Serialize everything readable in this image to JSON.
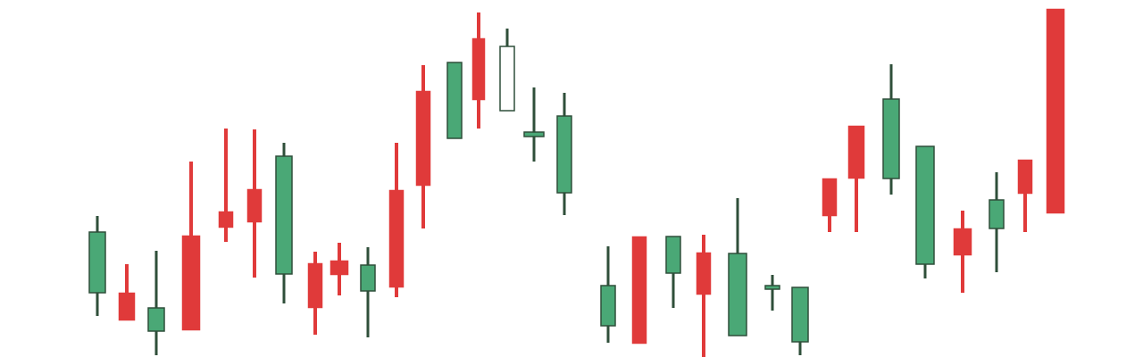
{
  "chart_data": {
    "type": "candlestick",
    "title": "",
    "xlabel": "",
    "ylabel": "",
    "ylim": [
      0,
      400
    ],
    "grid": false,
    "legend": "none",
    "colors": {
      "up": "#4aa876",
      "down": "#e03a3a",
      "hollow_fill": "#ffffff",
      "outline": "#2f4f3a"
    },
    "x": [
      1,
      2,
      3,
      4,
      5,
      6,
      7,
      8,
      9,
      10,
      11,
      12,
      13,
      14,
      15,
      16,
      17,
      18,
      19,
      20,
      21,
      22,
      23,
      24,
      25,
      26,
      27,
      28,
      29,
      30,
      31,
      32,
      33,
      34,
      35,
      36
    ],
    "candles": [
      {
        "x": 1,
        "open": 72,
        "close": 140,
        "high": 158,
        "low": 46,
        "dir": "up"
      },
      {
        "x": 2,
        "open": 72,
        "close": 41,
        "high": 104,
        "low": 41,
        "dir": "down"
      },
      {
        "x": 3,
        "open": 29,
        "close": 55,
        "high": 119,
        "low": 2,
        "dir": "up"
      },
      {
        "x": 4,
        "open": 136,
        "close": 30,
        "high": 219,
        "low": 30,
        "dir": "down"
      },
      {
        "x": 5,
        "open": 163,
        "close": 145,
        "high": 256,
        "low": 129,
        "dir": "down"
      },
      {
        "x": 6,
        "open": 188,
        "close": 151,
        "high": 255,
        "low": 89,
        "dir": "down"
      },
      {
        "x": 7,
        "open": 93,
        "close": 225,
        "high": 240,
        "low": 60,
        "dir": "up"
      },
      {
        "x": 8,
        "open": 105,
        "close": 55,
        "high": 118,
        "low": 25,
        "dir": "down"
      },
      {
        "x": 9,
        "open": 108,
        "close": 92,
        "high": 128,
        "low": 69,
        "dir": "down"
      },
      {
        "x": 10,
        "open": 74,
        "close": 103,
        "high": 123,
        "low": 22,
        "dir": "up"
      },
      {
        "x": 11,
        "open": 187,
        "close": 78,
        "high": 240,
        "low": 67,
        "dir": "down"
      },
      {
        "x": 12,
        "open": 298,
        "close": 192,
        "high": 327,
        "low": 144,
        "dir": "down"
      },
      {
        "x": 13,
        "open": 245,
        "close": 330,
        "high": 330,
        "low": 245,
        "dir": "up"
      },
      {
        "x": 14,
        "open": 357,
        "close": 288,
        "high": 386,
        "low": 256,
        "dir": "down"
      },
      {
        "x": 15,
        "open": 276,
        "close": 348,
        "high": 368,
        "low": 276,
        "dir": "hollow"
      },
      {
        "x": 16,
        "open": 247,
        "close": 252,
        "high": 302,
        "low": 219,
        "dir": "up"
      },
      {
        "x": 17,
        "open": 184,
        "close": 270,
        "high": 296,
        "low": 159,
        "dir": "up"
      },
      {
        "x": 18,
        "open": 35,
        "close": 80,
        "high": 124,
        "low": 16,
        "dir": "up"
      },
      {
        "x": 19,
        "open": 135,
        "close": 15,
        "high": 135,
        "low": 15,
        "dir": "down"
      },
      {
        "x": 20,
        "open": 94,
        "close": 135,
        "high": 135,
        "low": 55,
        "dir": "up"
      },
      {
        "x": 21,
        "open": 117,
        "close": 70,
        "high": 137,
        "low": 0,
        "dir": "down"
      },
      {
        "x": 22,
        "open": 24,
        "close": 116,
        "high": 178,
        "low": 24,
        "dir": "up"
      },
      {
        "x": 23,
        "open": 76,
        "close": 80,
        "high": 92,
        "low": 52,
        "dir": "up"
      },
      {
        "x": 24,
        "open": 17,
        "close": 78,
        "high": 78,
        "low": 2,
        "dir": "up"
      },
      {
        "x": 25,
        "open": 200,
        "close": 158,
        "high": 200,
        "low": 140,
        "dir": "down"
      },
      {
        "x": 26,
        "open": 259,
        "close": 200,
        "high": 259,
        "low": 140,
        "dir": "down"
      },
      {
        "x": 27,
        "open": 200,
        "close": 289,
        "high": 328,
        "low": 182,
        "dir": "up"
      },
      {
        "x": 28,
        "open": 104,
        "close": 236,
        "high": 236,
        "low": 88,
        "dir": "up"
      },
      {
        "x": 29,
        "open": 144,
        "close": 114,
        "high": 164,
        "low": 72,
        "dir": "down"
      },
      {
        "x": 30,
        "open": 144,
        "close": 176,
        "high": 207,
        "low": 95,
        "dir": "up"
      },
      {
        "x": 31,
        "open": 221,
        "close": 183,
        "high": 221,
        "low": 140,
        "dir": "down"
      },
      {
        "x": 32,
        "open": 390,
        "close": 161,
        "high": 390,
        "low": 161,
        "dir": "down"
      }
    ]
  }
}
